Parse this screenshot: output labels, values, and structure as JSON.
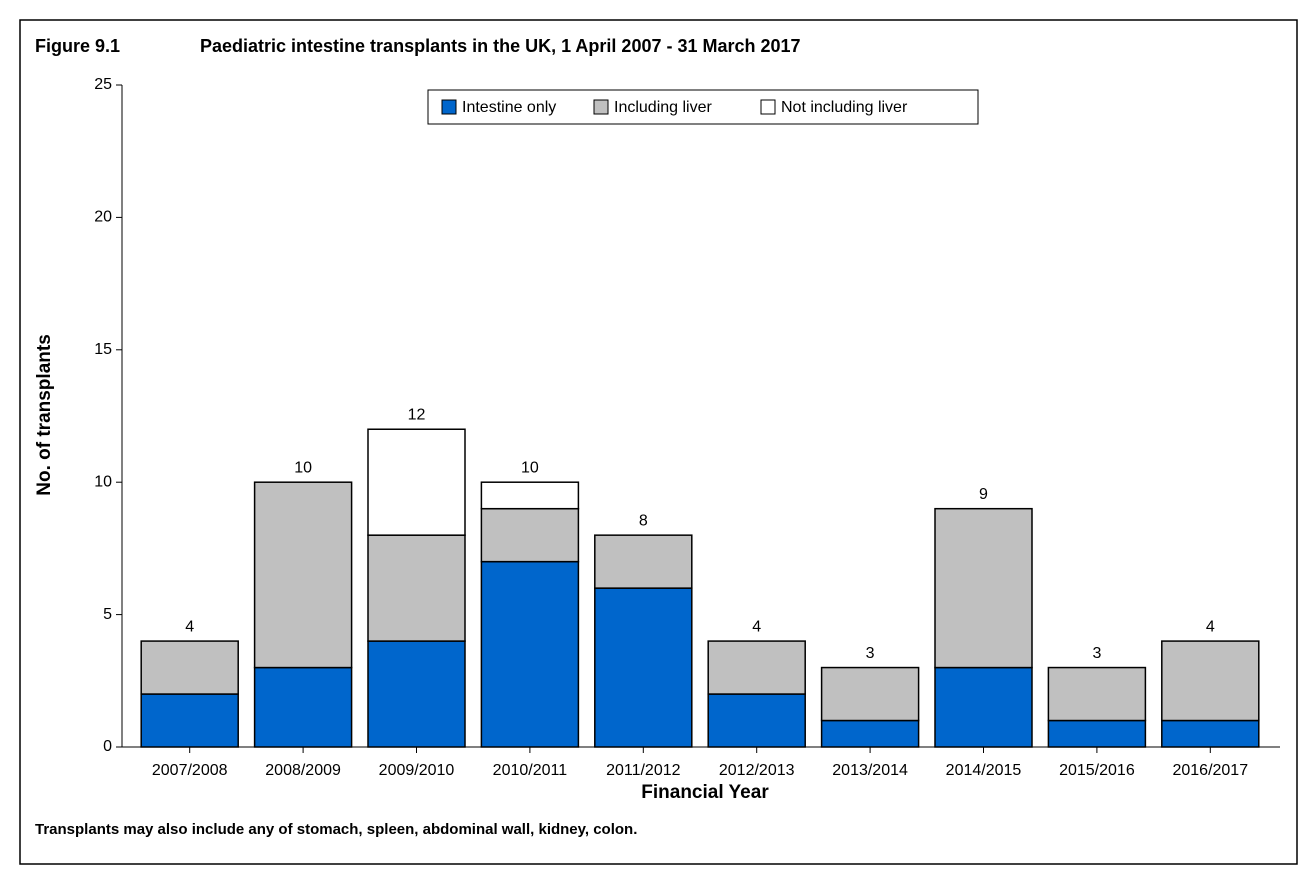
{
  "chart_data": {
    "type": "stacked_bar",
    "figure_label": "Figure 9.1",
    "title": "Paediatric intestine transplants in the UK, 1 April 2007 - 31 March 2017",
    "x_label": "Financial Year",
    "y_label": "No. of transplants",
    "footnote": "Transplants may also include any of stomach, spleen, abdominal wall, kidney, colon.",
    "categories": [
      "2007/2008",
      "2008/2009",
      "2009/2010",
      "2010/2011",
      "2011/2012",
      "2012/2013",
      "2013/2014",
      "2014/2015",
      "2015/2016",
      "2016/2017"
    ],
    "series": [
      {
        "name": "Intestine only",
        "color": "#0066cc",
        "values": [
          2,
          3,
          4,
          7,
          6,
          2,
          1,
          3,
          1,
          1
        ]
      },
      {
        "name": "Including liver",
        "color": "#c0c0c0",
        "values": [
          2,
          7,
          4,
          2,
          2,
          2,
          2,
          6,
          2,
          3
        ]
      },
      {
        "name": "Not including liver",
        "color": "#ffffff",
        "values": [
          0,
          0,
          4,
          1,
          0,
          0,
          0,
          0,
          0,
          0
        ]
      }
    ],
    "totals": [
      4,
      10,
      12,
      10,
      8,
      4,
      3,
      9,
      3,
      4
    ],
    "ylim": [
      0,
      25
    ],
    "yticks": [
      0,
      5,
      10,
      15,
      20,
      25
    ],
    "legend": "top-center"
  }
}
